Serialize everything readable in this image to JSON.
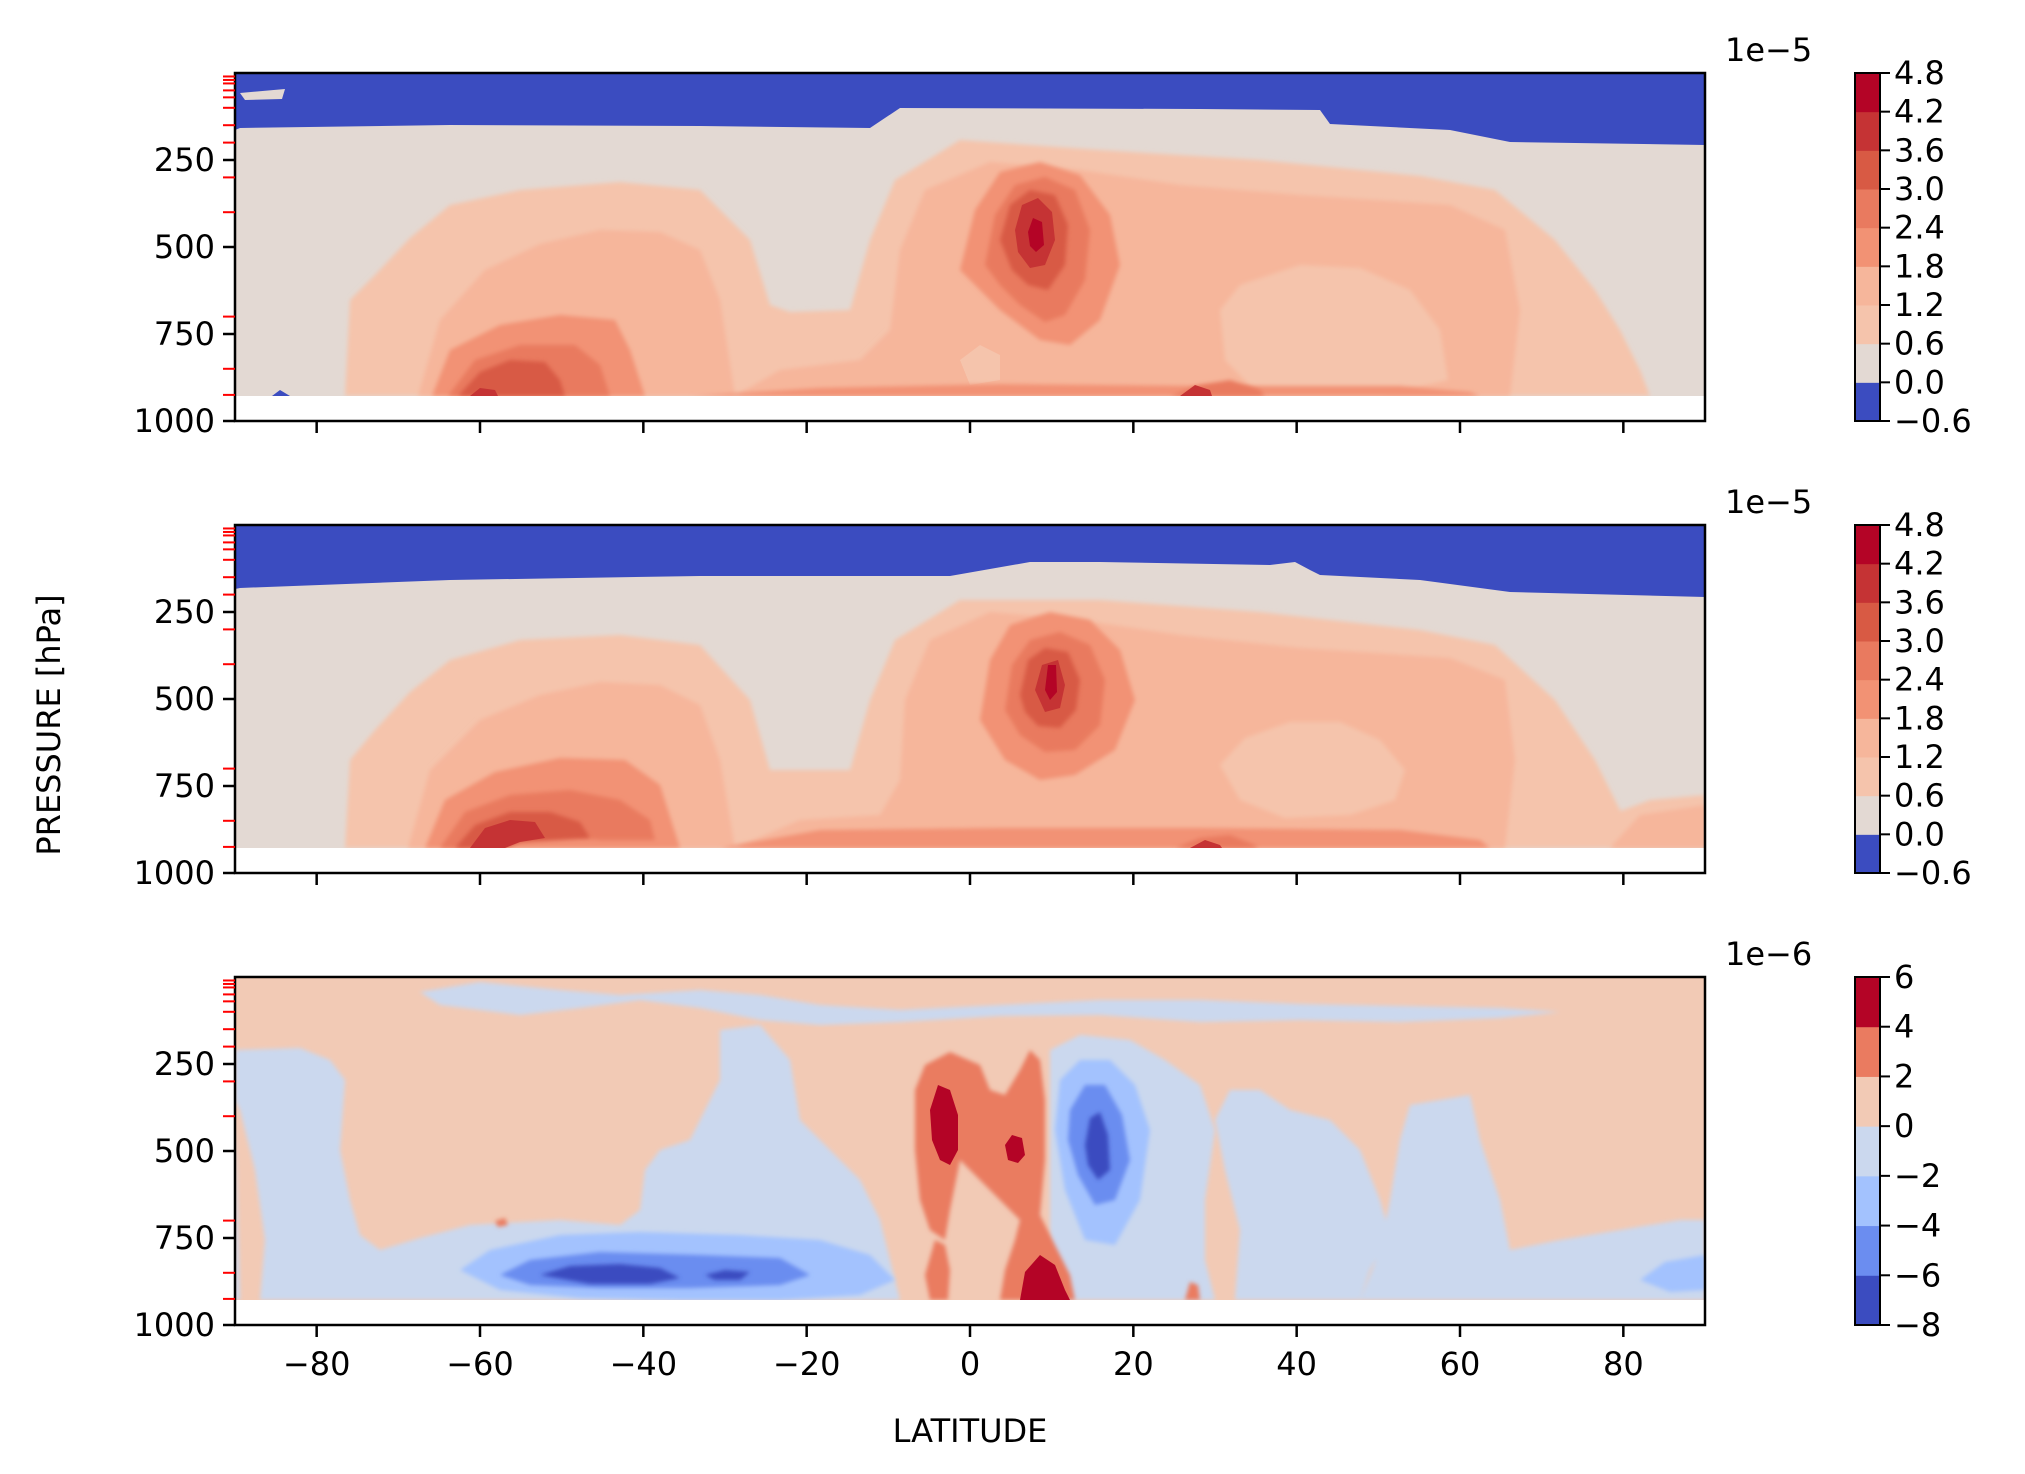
{
  "figure": {
    "ylabel": "PRESSURE [hPa]",
    "xlabel": "LATITUDE"
  },
  "colors": {
    "c_neg8": "#3b4cc0",
    "c_neg6": "#6b8df0",
    "c_neg4": "#a3c2fe",
    "c_neg2": "#cbd8ee",
    "c_0": "#f2cab5",
    "c_2": "#ea7b60",
    "c_4": "#b40426",
    "v_neg06": "#3b4cc0",
    "v_00": "#e3d9d3",
    "v_06": "#f5c4ac",
    "v_12": "#f6b69b",
    "v_18": "#f29274",
    "v_24": "#e97a5f",
    "v_30": "#d85a44",
    "v_36": "#c53334",
    "v_42": "#b40426",
    "red_tick": "#ff0000"
  },
  "chart_data": [
    {
      "type": "contourf",
      "panel": "top",
      "x": {
        "label": "",
        "range": [
          -90,
          90
        ],
        "ticks": [
          -80,
          -60,
          -40,
          -20,
          0,
          20,
          40,
          60,
          80
        ]
      },
      "y": {
        "label": "PRESSURE [hPa]",
        "range": [
          1000,
          0
        ],
        "ticks": [
          250,
          500,
          750,
          1000
        ],
        "tick_labels": [
          "250",
          "500",
          "750",
          "1000"
        ]
      },
      "colorbar": {
        "multiplier": "1e−5",
        "levels": [
          -0.6,
          0.0,
          0.6,
          1.2,
          1.8,
          2.4,
          3.0,
          3.6,
          4.2,
          4.8
        ],
        "tick_labels": [
          "4.8",
          "4.2",
          "3.6",
          "3.0",
          "2.4",
          "1.8",
          "1.2",
          "0.6",
          "0.0",
          "−0.6"
        ]
      },
      "features": [
        {
          "lat": 9,
          "pressure": 450,
          "value": 4.5
        },
        {
          "lat": -52,
          "pressure": 860,
          "value": 3.2
        },
        {
          "lat": 28,
          "pressure": 915,
          "value": 4.0
        },
        {
          "lat": 47,
          "pressure": 690,
          "value": 0.6
        }
      ],
      "data_bottom_pressure": 925
    },
    {
      "type": "contourf",
      "panel": "middle",
      "x": {
        "label": "",
        "range": [
          -90,
          90
        ],
        "ticks": [
          -80,
          -60,
          -40,
          -20,
          0,
          20,
          40,
          60,
          80
        ]
      },
      "y": {
        "label": "PRESSURE [hPa]",
        "range": [
          1000,
          0
        ],
        "ticks": [
          250,
          500,
          750,
          1000
        ],
        "tick_labels": [
          "250",
          "500",
          "750",
          "1000"
        ]
      },
      "colorbar": {
        "multiplier": "1e−5",
        "levels": [
          -0.6,
          0.0,
          0.6,
          1.2,
          1.8,
          2.4,
          3.0,
          3.6,
          4.2,
          4.8
        ],
        "tick_labels": [
          "4.8",
          "4.2",
          "3.6",
          "3.0",
          "2.4",
          "1.8",
          "1.2",
          "0.6",
          "0.0",
          "−0.6"
        ]
      },
      "features": [
        {
          "lat": 11,
          "pressure": 440,
          "value": 4.4
        },
        {
          "lat": -56,
          "pressure": 870,
          "value": 3.6
        },
        {
          "lat": 28,
          "pressure": 920,
          "value": 3.8
        },
        {
          "lat": 44,
          "pressure": 690,
          "value": 0.6
        }
      ],
      "data_bottom_pressure": 925
    },
    {
      "type": "contourf",
      "panel": "bottom",
      "x": {
        "label": "LATITUDE",
        "range": [
          -90,
          90
        ],
        "ticks": [
          -80,
          -60,
          -40,
          -20,
          0,
          20,
          40,
          60,
          80
        ],
        "tick_labels": [
          "−80",
          "−60",
          "−40",
          "−20",
          "0",
          "20",
          "40",
          "60",
          "80"
        ]
      },
      "y": {
        "label": "PRESSURE [hPa]",
        "range": [
          1000,
          0
        ],
        "ticks": [
          250,
          500,
          750,
          1000
        ],
        "tick_labels": [
          "250",
          "500",
          "750",
          "1000"
        ]
      },
      "colorbar": {
        "multiplier": "1e−6",
        "levels": [
          -8,
          -6,
          -4,
          -2,
          0,
          2,
          4,
          6
        ],
        "tick_labels": [
          "6",
          "4",
          "2",
          "0",
          "−2",
          "−4",
          "−6",
          "−8"
        ]
      },
      "features": [
        {
          "lat": -3,
          "pressure": 440,
          "value": 5
        },
        {
          "lat": 7,
          "pressure": 480,
          "value": 5
        },
        {
          "lat": 8,
          "pressure": 900,
          "value": 5
        },
        {
          "lat": 15,
          "pressure": 450,
          "value": -7
        },
        {
          "lat": -40,
          "pressure": 855,
          "value": -7
        }
      ],
      "data_bottom_pressure": 925
    }
  ]
}
